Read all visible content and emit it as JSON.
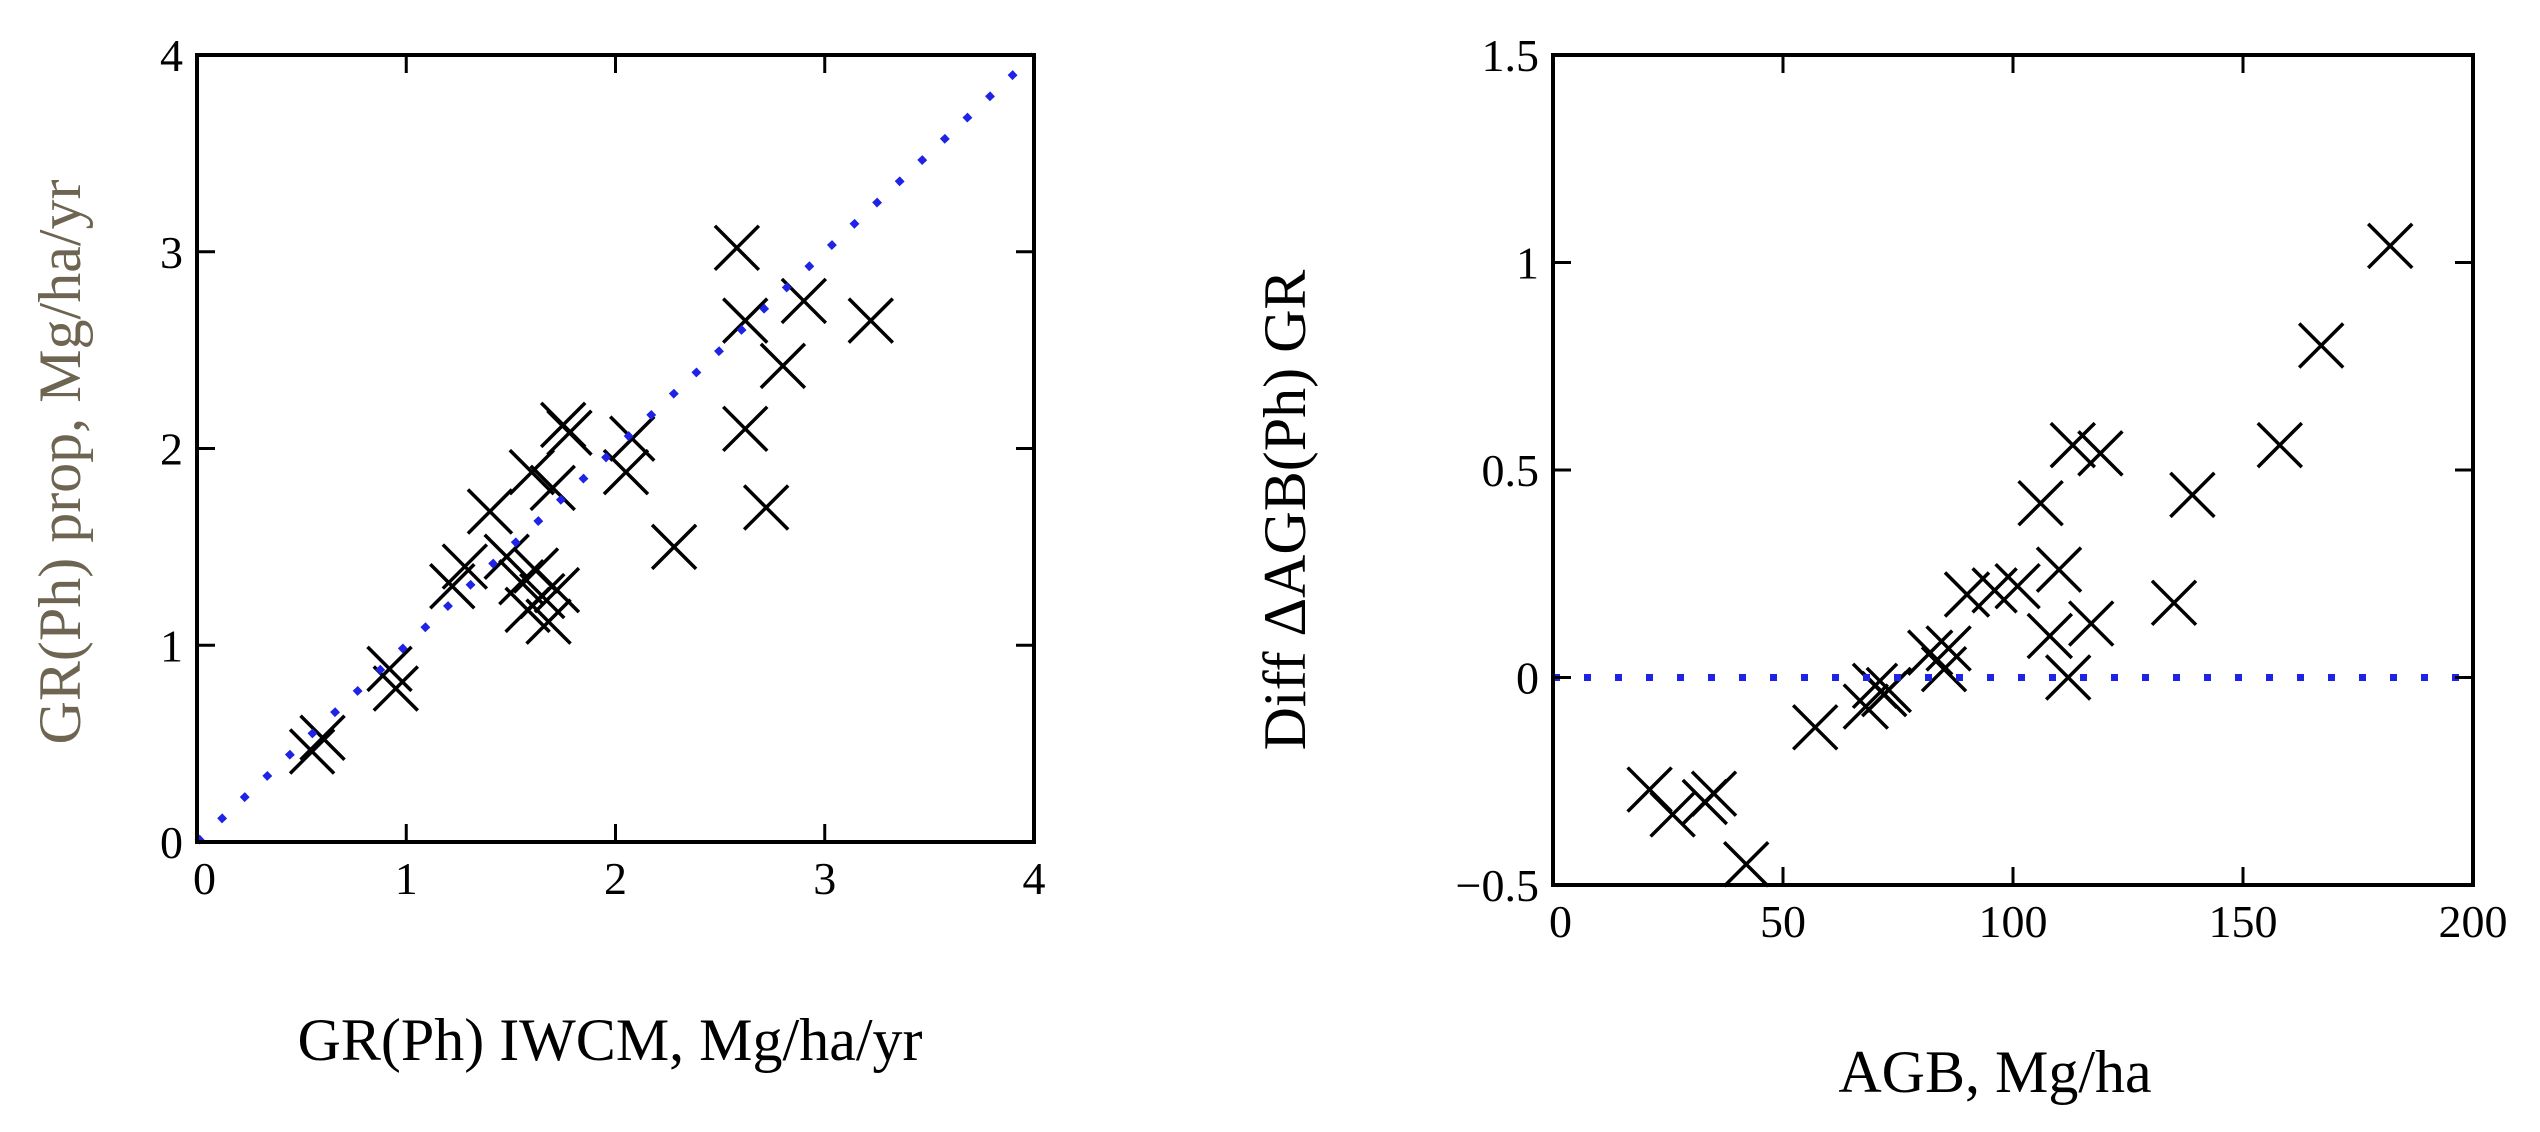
{
  "chart_data": [
    {
      "type": "scatter",
      "title": "",
      "xlabel": "GR(Ph) IWCM, Mg/ha/yr",
      "ylabel": "GR(Ph) prop, Mg/ha/yr",
      "xlim": [
        0,
        4
      ],
      "ylim": [
        0,
        4
      ],
      "xticks": [
        0,
        1,
        2,
        3,
        4
      ],
      "yticks": [
        0,
        1,
        2,
        3,
        4
      ],
      "grid": false,
      "reference_line": {
        "style": "dotted",
        "color": "#1f23e6",
        "from": [
          0,
          0
        ],
        "to": [
          4,
          4
        ]
      },
      "marker": "x",
      "marker_color": "#000000",
      "series": [
        {
          "x": [
            0.55,
            0.6,
            0.92,
            0.95,
            1.22,
            1.28,
            1.4,
            1.48,
            1.55,
            1.58,
            1.6,
            1.62,
            1.65,
            1.68,
            1.7,
            1.72,
            1.75,
            1.78,
            2.05,
            2.08,
            2.28,
            2.58,
            2.62,
            2.62,
            2.72,
            2.8,
            2.9,
            3.22
          ],
          "y": [
            0.46,
            0.53,
            0.88,
            0.78,
            1.3,
            1.4,
            1.68,
            1.45,
            1.32,
            1.18,
            1.88,
            1.38,
            1.25,
            1.12,
            1.8,
            1.28,
            2.12,
            2.08,
            1.88,
            2.05,
            1.5,
            3.02,
            2.65,
            2.1,
            1.7,
            2.42,
            2.75,
            2.65
          ]
        }
      ]
    },
    {
      "type": "scatter",
      "title": "",
      "xlabel": "AGB, Mg/ha",
      "ylabel": "Diff ΔAGB(Ph) GR",
      "xlim": [
        0,
        200
      ],
      "ylim": [
        -0.5,
        1.5
      ],
      "xticks": [
        0,
        50,
        100,
        150,
        200
      ],
      "yticks": [
        -0.5,
        0,
        0.5,
        1,
        1.5
      ],
      "ytick_labels": [
        "−0.5",
        "0",
        "0.5",
        "1",
        "1.5"
      ],
      "grid": false,
      "reference_line": {
        "style": "dotted",
        "color": "#1f23e6",
        "from": [
          0,
          0
        ],
        "to": [
          200,
          0
        ]
      },
      "marker": "x",
      "marker_color": "#000000",
      "series": [
        {
          "x": [
            21,
            26,
            33,
            35,
            42,
            57,
            68,
            70,
            72,
            73,
            82,
            85,
            86,
            90,
            96,
            101,
            106,
            108,
            110,
            112,
            113,
            117,
            119,
            135,
            139,
            158,
            167,
            182
          ],
          "y": [
            -0.27,
            -0.33,
            -0.3,
            -0.28,
            -0.45,
            -0.12,
            -0.07,
            -0.02,
            -0.04,
            -0.03,
            0.06,
            0.02,
            0.07,
            0.2,
            0.21,
            0.22,
            0.42,
            0.1,
            0.26,
            0.0,
            0.56,
            0.13,
            0.54,
            0.18,
            0.44,
            0.56,
            0.8,
            1.04
          ]
        }
      ]
    }
  ]
}
